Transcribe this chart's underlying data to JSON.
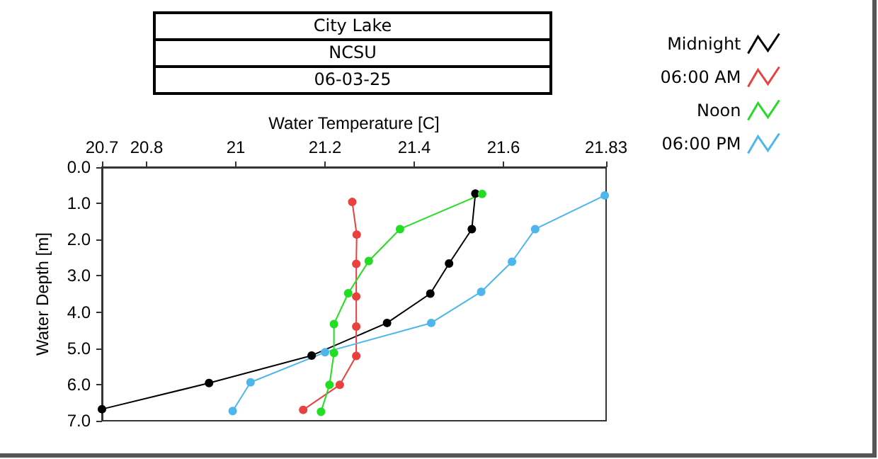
{
  "chart_data": {
    "type": "line",
    "title": "City Lake",
    "subtitle": "NCSU",
    "annotations": [
      "06-03-25"
    ],
    "xlabel": "Water Temperature [C]",
    "ylabel": "Water Depth [m]",
    "xlim": [
      20.7,
      21.83
    ],
    "xticks": [
      20.7,
      20.8,
      21,
      21.2,
      21.4,
      21.6,
      21.83
    ],
    "ylim": [
      7.0,
      0.0
    ],
    "yticks": [
      {
        "value": 0,
        "label": "0.0"
      },
      {
        "value": 1,
        "label": "1.0"
      },
      {
        "value": 2,
        "label": "2.0"
      },
      {
        "value": 3,
        "label": "3.0"
      },
      {
        "value": 4,
        "label": "4.0"
      },
      {
        "value": 5,
        "label": "5.0"
      },
      {
        "value": 6,
        "label": "6.0"
      },
      {
        "value": 7,
        "label": "7.0"
      }
    ],
    "grid": false,
    "legend": "top right",
    "marker": "circle",
    "line_style": "solid",
    "series": [
      {
        "name": "Midnight",
        "color": "#000000",
        "x": [
          21.537,
          21.529,
          21.478,
          21.436,
          21.339,
          21.17,
          20.94,
          20.7
        ],
        "values": [
          0.73,
          1.71,
          2.66,
          3.49,
          4.3,
          5.2,
          5.96,
          6.68
        ]
      },
      {
        "name": "06:00 AM",
        "color": "#e8413e",
        "x": [
          21.261,
          21.271,
          21.27,
          21.27,
          21.27,
          21.27,
          21.233,
          21.151
        ],
        "values": [
          0.96,
          1.86,
          2.67,
          3.57,
          4.4,
          5.21,
          6.01,
          6.7
        ]
      },
      {
        "name": "Noon",
        "color": "#22dd22",
        "x": [
          21.552,
          21.368,
          21.298,
          21.252,
          21.22,
          21.22,
          21.21,
          21.191
        ],
        "values": [
          0.74,
          1.71,
          2.59,
          3.48,
          4.33,
          5.13,
          6.01,
          6.75
        ]
      },
      {
        "name": "06:00 PM",
        "color": "#4db6ec",
        "x": [
          21.827,
          21.671,
          21.619,
          21.55,
          21.438,
          21.2,
          21.033,
          20.993
        ],
        "values": [
          0.78,
          1.71,
          2.61,
          3.44,
          4.3,
          5.11,
          5.94,
          6.73
        ]
      }
    ]
  }
}
